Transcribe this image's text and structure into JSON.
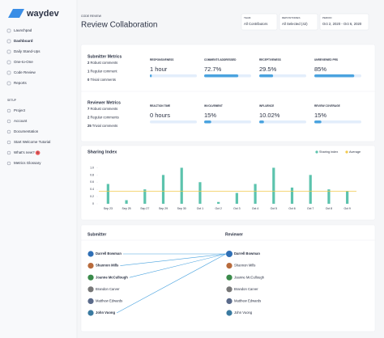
{
  "sidebar": {
    "logo": "waydev",
    "items": [
      "Launchpad",
      "Dashboard",
      "Daily Stand-Ups",
      "One-to-One",
      "Code Review",
      "Reports"
    ],
    "section": "SETUP",
    "setup_items": [
      "Project",
      "Account",
      "Documentation",
      "Start Welcome Tutorial",
      "What's new?",
      "Metrics Glossary"
    ],
    "badge": "5"
  },
  "header": {
    "eyebrow": "CODE REVIEW",
    "title": "Review Collaboration",
    "filters": [
      {
        "label": "TEAM",
        "value": "All Contributors"
      },
      {
        "label": "REPOSITORIES",
        "value": "All Selected (42)"
      },
      {
        "label": "PERIOD",
        "value": "Oct 2, 2020 - Oct 6, 2020"
      }
    ]
  },
  "submitter_metrics": {
    "title": "Submitter Metrics",
    "counts": [
      {
        "count": 2,
        "label": "Robust comments"
      },
      {
        "count": 1,
        "label": "Regular comment"
      },
      {
        "count": 0,
        "label": "Trivial comments"
      }
    ],
    "metrics": [
      {
        "label": "RESPONSIVENESS",
        "value": "1 hour",
        "percent": 4
      },
      {
        "label": "COMMENTS ADDRESSED",
        "value": "72.7%",
        "percent": 72.7
      },
      {
        "label": "RECEPTIVENESS",
        "value": "29.5%",
        "percent": 29.5
      },
      {
        "label": "UNREVIEWED PRS",
        "value": "85%",
        "percent": 85
      }
    ]
  },
  "reviewer_metrics": {
    "title": "Reviewer Metrics",
    "counts": [
      {
        "count": 7,
        "label": "Robust comments"
      },
      {
        "count": 2,
        "label": "Regular comments"
      },
      {
        "count": 25,
        "label": "Trivial comments"
      }
    ],
    "metrics": [
      {
        "label": "REACTION TIME",
        "value": "0 hours",
        "percent": 0
      },
      {
        "label": "INVOLVEMENT",
        "value": "15%",
        "percent": 15
      },
      {
        "label": "INFLUENCE",
        "value": "10.02%",
        "percent": 10.02
      },
      {
        "label": "REVIEW COVERAGE",
        "value": "15%",
        "percent": 15
      }
    ]
  },
  "chart_data": {
    "type": "bar",
    "title": "Sharing Index",
    "categories": [
      "Sep 23",
      "Sep 25",
      "Sep 27",
      "Sep 29",
      "Sep 30",
      "Oct 1",
      "Oct 2",
      "Oct 3",
      "Oct 4",
      "Oct 5",
      "Oct 6",
      "Oct 7",
      "Oct 8",
      "Oct 9"
    ],
    "series": [
      {
        "name": "Sharing index",
        "color": "#5cc3ad",
        "values": [
          0.55,
          0.1,
          0.4,
          0.8,
          1.0,
          0.6,
          0.05,
          0.3,
          0.55,
          1.0,
          0.45,
          0.8,
          0.4,
          0.35
        ]
      }
    ],
    "average": {
      "name": "Average",
      "color": "#f2c94c",
      "value": 0.35
    },
    "ylim": [
      0,
      1.1
    ],
    "yticks": [
      0,
      0.2,
      0.4,
      0.6,
      0.8,
      {
        "value": 1,
        "label": "1.0"
      }
    ],
    "grid": false
  },
  "collaboration": {
    "submitter_title": "Submitter",
    "reviewer_title": "Reviewer",
    "submitters": [
      "Darrell Bowman",
      "Shannon Mills",
      "Joanne McCullough",
      "Brandon Carver",
      "Matthew Edwards",
      "John Vuong"
    ],
    "reviewers": [
      "Darrell Bowman",
      "Shannon Mills",
      "Joanne McCullough",
      "Brandon Carver",
      "Matthew Edwards",
      "John Vuong"
    ],
    "links": [
      {
        "from": 0,
        "to": 0
      },
      {
        "from": 1,
        "to": 0
      },
      {
        "from": 2,
        "to": 0
      },
      {
        "from": 5,
        "to": 0
      }
    ]
  }
}
